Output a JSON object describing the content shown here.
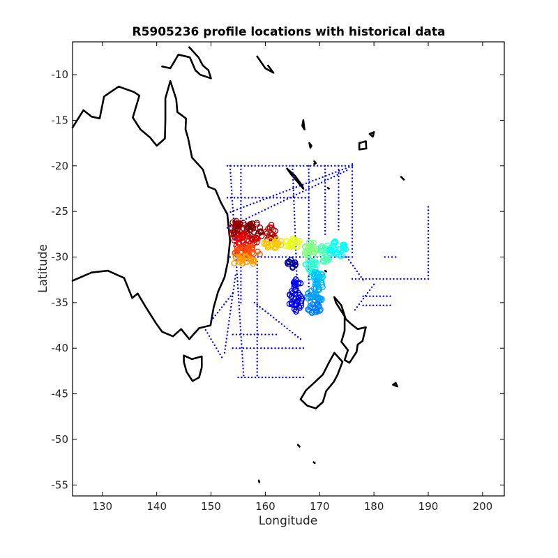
{
  "chart_data": {
    "type": "scatter",
    "title": "R5905236 profile locations with historical data",
    "xlabel": "Longitude",
    "ylabel": "Latitude",
    "xlim": [
      124.5,
      204
    ],
    "ylim": [
      -56.2,
      -6.4
    ],
    "xticks": [
      130,
      140,
      150,
      160,
      170,
      180,
      190,
      200
    ],
    "yticks": [
      -10,
      -15,
      -20,
      -25,
      -30,
      -35,
      -40,
      -45,
      -50,
      -55
    ],
    "grid": false,
    "legend": "none",
    "colors": {
      "coastline": "#000000",
      "historical": "#0000ff",
      "colormap": "jet"
    },
    "series": [
      {
        "marker": "dot",
        "color": "#0000ff",
        "tracks": [
          {
            "x": [
              153.0,
              176.0
            ],
            "y": [
              -20.0,
              -20.0
            ]
          },
          {
            "x": [
              153.0,
              168.0
            ],
            "y": [
              -23.5,
              -23.5
            ]
          },
          {
            "x": [
              153.5,
              176.0
            ],
            "y": [
              -30.0,
              -30.0
            ]
          },
          {
            "x": [
              176.0,
              190.0
            ],
            "y": [
              -32.4,
              -32.4
            ]
          },
          {
            "x": [
              153.0,
              176.0
            ],
            "y": [
              -25.2,
              -20.0
            ]
          },
          {
            "x": [
              153.0,
              175.0
            ],
            "y": [
              -26.8,
              -20.5
            ]
          },
          {
            "x": [
              154.0,
              162.0
            ],
            "y": [
              -38.5,
              -38.5
            ]
          },
          {
            "x": [
              154.0,
              167.0
            ],
            "y": [
              -40.0,
              -40.0
            ]
          },
          {
            "x": [
              155.0,
              167.0
            ],
            "y": [
              -43.2,
              -43.2
            ]
          },
          {
            "x": [
              153.5,
              156.0
            ],
            "y": [
              -20.0,
              -43.0
            ]
          },
          {
            "x": [
              155.5,
              155.5
            ],
            "y": [
              -20.0,
              -35.0
            ]
          },
          {
            "x": [
              158.5,
              158.5
            ],
            "y": [
              -30.5,
              -43.0
            ]
          },
          {
            "x": [
              165.0,
              166.0
            ],
            "y": [
              -20.0,
              -35.0
            ]
          },
          {
            "x": [
              168.0,
              168.0
            ],
            "y": [
              -20.0,
              -34.0
            ]
          },
          {
            "x": [
              171.0,
              171.0
            ],
            "y": [
              -20.0,
              -27.5
            ]
          },
          {
            "x": [
              173.5,
              173.5
            ],
            "y": [
              -20.0,
              -27.0
            ]
          },
          {
            "x": [
              176.0,
              176.0
            ],
            "y": [
              -19.8,
              -29.5
            ]
          },
          {
            "x": [
              190.0,
              190.0
            ],
            "y": [
              -24.5,
              -32.4
            ]
          },
          {
            "x": [
              175.0,
              178.0
            ],
            "y": [
              -30.0,
              -32.5
            ]
          },
          {
            "x": [
              178.0,
              183.0
            ],
            "y": [
              -34.3,
              -34.3
            ]
          },
          {
            "x": [
              178.0,
              183.0
            ],
            "y": [
              -35.3,
              -35.3
            ]
          },
          {
            "x": [
              176.5,
              180.0
            ],
            "y": [
              -35.8,
              -33.0
            ]
          },
          {
            "x": [
              152.5,
              154.5
            ],
            "y": [
              -40.5,
              -32.0
            ]
          },
          {
            "x": [
              149.0,
              152.0
            ],
            "y": [
              -38.0,
              -41.0
            ]
          },
          {
            "x": [
              158.0,
              166.5
            ],
            "y": [
              -35.0,
              -39.0
            ]
          },
          {
            "x": [
              150.0,
              154.0
            ],
            "y": [
              -37.0,
              -34.0
            ]
          },
          {
            "x": [
              182.0,
              184.0
            ],
            "y": [
              -30.0,
              -30.0
            ]
          }
        ]
      },
      {
        "marker": "circle",
        "colormap": "jet",
        "clusters": [
          {
            "cx": 155.0,
            "cy": -27.0,
            "rx": 1.5,
            "ry": 1.1,
            "n": 35,
            "c": 0.98
          },
          {
            "cx": 158.0,
            "cy": -27.2,
            "rx": 1.6,
            "ry": 1.0,
            "n": 35,
            "c": 1.0
          },
          {
            "cx": 161.0,
            "cy": -27.3,
            "rx": 1.0,
            "ry": 1.0,
            "n": 18,
            "c": 0.95
          },
          {
            "cx": 156.5,
            "cy": -28.3,
            "rx": 2.4,
            "ry": 0.8,
            "n": 35,
            "c": 0.9
          },
          {
            "cx": 156.5,
            "cy": -29.5,
            "rx": 2.6,
            "ry": 0.7,
            "n": 35,
            "c": 0.8
          },
          {
            "cx": 156.0,
            "cy": -30.4,
            "rx": 2.2,
            "ry": 0.6,
            "n": 25,
            "c": 0.72
          },
          {
            "cx": 161.5,
            "cy": -28.5,
            "rx": 1.8,
            "ry": 0.6,
            "n": 25,
            "c": 0.68
          },
          {
            "cx": 165.0,
            "cy": -28.5,
            "rx": 1.5,
            "ry": 0.6,
            "n": 22,
            "c": 0.6
          },
          {
            "cx": 168.5,
            "cy": -29.3,
            "rx": 1.5,
            "ry": 1.0,
            "n": 28,
            "c": 0.5
          },
          {
            "cx": 171.0,
            "cy": -29.6,
            "rx": 1.3,
            "ry": 1.0,
            "n": 26,
            "c": 0.45
          },
          {
            "cx": 173.3,
            "cy": -29.2,
            "rx": 1.6,
            "ry": 1.0,
            "n": 30,
            "c": 0.38
          },
          {
            "cx": 168.5,
            "cy": -31.0,
            "rx": 1.2,
            "ry": 0.8,
            "n": 20,
            "c": 0.42
          },
          {
            "cx": 169.5,
            "cy": -32.3,
            "rx": 1.3,
            "ry": 0.8,
            "n": 20,
            "c": 0.32
          },
          {
            "cx": 170.0,
            "cy": -33.0,
            "rx": 1.0,
            "ry": 0.7,
            "n": 15,
            "c": 0.3
          },
          {
            "cx": 169.0,
            "cy": -34.4,
            "rx": 1.5,
            "ry": 1.0,
            "n": 25,
            "c": 0.28
          },
          {
            "cx": 169.0,
            "cy": -35.5,
            "rx": 1.5,
            "ry": 0.7,
            "n": 25,
            "c": 0.25
          },
          {
            "cx": 165.5,
            "cy": -34.8,
            "rx": 1.3,
            "ry": 1.3,
            "n": 35,
            "c": 0.1
          },
          {
            "cx": 165.8,
            "cy": -33.0,
            "rx": 0.8,
            "ry": 0.6,
            "n": 12,
            "c": 0.12
          },
          {
            "cx": 164.8,
            "cy": -30.7,
            "rx": 0.9,
            "ry": 0.5,
            "n": 15,
            "c": 0.03
          }
        ]
      }
    ],
    "coastlines": [
      [
        [
          124.5,
          -32.6
        ],
        [
          128.0,
          -31.7
        ],
        [
          131.0,
          -31.5
        ],
        [
          134.0,
          -32.3
        ],
        [
          135.5,
          -34.5
        ],
        [
          136.5,
          -34.0
        ],
        [
          138.0,
          -35.5
        ],
        [
          139.8,
          -37.2
        ],
        [
          141.0,
          -38.2
        ],
        [
          143.0,
          -38.7
        ],
        [
          144.5,
          -37.9
        ],
        [
          146.0,
          -39.0
        ],
        [
          147.8,
          -37.8
        ],
        [
          149.9,
          -37.5
        ],
        [
          150.5,
          -35.5
        ],
        [
          151.3,
          -33.8
        ],
        [
          152.5,
          -32.2
        ],
        [
          153.1,
          -30.5
        ],
        [
          153.5,
          -28.2
        ],
        [
          153.2,
          -26.5
        ],
        [
          153.0,
          -25.3
        ],
        [
          151.8,
          -24.0
        ],
        [
          150.8,
          -22.6
        ],
        [
          149.5,
          -22.3
        ],
        [
          148.5,
          -20.4
        ],
        [
          146.5,
          -19.1
        ],
        [
          145.8,
          -17.0
        ],
        [
          145.3,
          -16.0
        ],
        [
          145.4,
          -14.8
        ],
        [
          143.8,
          -14.1
        ],
        [
          143.6,
          -12.7
        ],
        [
          142.5,
          -10.7
        ],
        [
          141.6,
          -12.6
        ],
        [
          141.6,
          -15.0
        ],
        [
          141.5,
          -17.0
        ],
        [
          140.0,
          -17.8
        ],
        [
          138.8,
          -16.9
        ],
        [
          137.0,
          -16.0
        ],
        [
          135.6,
          -14.7
        ],
        [
          136.8,
          -12.3
        ],
        [
          135.8,
          -11.9
        ],
        [
          133.0,
          -11.3
        ],
        [
          131.5,
          -11.9
        ],
        [
          130.3,
          -12.4
        ],
        [
          129.5,
          -14.8
        ],
        [
          128.0,
          -14.6
        ],
        [
          126.5,
          -13.9
        ],
        [
          124.5,
          -15.8
        ]
      ],
      [
        [
          145.0,
          -40.8
        ],
        [
          146.5,
          -41.2
        ],
        [
          148.3,
          -40.9
        ],
        [
          148.3,
          -42.1
        ],
        [
          147.8,
          -43.2
        ],
        [
          146.6,
          -43.6
        ],
        [
          145.5,
          -42.6
        ],
        [
          145.0,
          -41.5
        ],
        [
          145.0,
          -40.8
        ]
      ],
      [
        [
          172.7,
          -34.4
        ],
        [
          174.0,
          -35.3
        ],
        [
          174.8,
          -36.8
        ],
        [
          175.9,
          -37.4
        ],
        [
          177.0,
          -37.9
        ],
        [
          178.5,
          -37.7
        ],
        [
          177.9,
          -39.2
        ],
        [
          177.0,
          -39.6
        ],
        [
          176.8,
          -40.4
        ],
        [
          175.5,
          -41.6
        ],
        [
          174.6,
          -41.3
        ],
        [
          175.2,
          -40.2
        ],
        [
          174.0,
          -39.3
        ],
        [
          174.6,
          -38.1
        ],
        [
          174.6,
          -36.5
        ],
        [
          173.0,
          -35.0
        ],
        [
          172.7,
          -34.4
        ]
      ],
      [
        [
          172.7,
          -40.5
        ],
        [
          174.2,
          -41.5
        ],
        [
          173.3,
          -42.9
        ],
        [
          172.6,
          -43.7
        ],
        [
          171.2,
          -44.7
        ],
        [
          170.6,
          -45.9
        ],
        [
          169.3,
          -46.6
        ],
        [
          167.7,
          -46.3
        ],
        [
          166.5,
          -45.6
        ],
        [
          167.5,
          -44.6
        ],
        [
          168.8,
          -43.9
        ],
        [
          170.6,
          -42.9
        ],
        [
          171.6,
          -41.7
        ],
        [
          172.7,
          -40.5
        ]
      ],
      [
        [
          141.0,
          -9.1
        ],
        [
          142.5,
          -9.3
        ],
        [
          144.0,
          -7.8
        ],
        [
          146.1,
          -8.1
        ],
        [
          147.1,
          -9.5
        ],
        [
          148.0,
          -10.0
        ],
        [
          150.0,
          -10.4
        ],
        [
          149.5,
          -9.5
        ],
        [
          148.5,
          -9.0
        ],
        [
          147.7,
          -8.1
        ],
        [
          146.0,
          -7.0
        ]
      ],
      [
        [
          164.0,
          -20.3
        ],
        [
          165.5,
          -21.1
        ],
        [
          166.8,
          -22.2
        ],
        [
          167.0,
          -22.5
        ],
        [
          166.0,
          -21.8
        ],
        [
          164.7,
          -20.9
        ],
        [
          164.0,
          -20.3
        ]
      ],
      [
        [
          177.3,
          -17.5
        ],
        [
          178.5,
          -17.3
        ],
        [
          178.6,
          -18.1
        ],
        [
          177.3,
          -18.2
        ],
        [
          177.3,
          -17.5
        ]
      ],
      [
        [
          158.5,
          -8.0
        ],
        [
          160.0,
          -9.3
        ],
        [
          161.5,
          -9.8
        ],
        [
          160.5,
          -9.0
        ]
      ],
      [
        [
          167.0,
          -15.0
        ],
        [
          167.2,
          -16.0
        ],
        [
          166.8,
          -15.6
        ],
        [
          167.0,
          -15.0
        ]
      ],
      [
        [
          168.1,
          -17.5
        ],
        [
          168.5,
          -17.8
        ],
        [
          168.3,
          -18.0
        ],
        [
          168.1,
          -17.5
        ]
      ],
      [
        [
          169.0,
          -19.5
        ],
        [
          169.3,
          -19.7
        ],
        [
          169.0,
          -19.8
        ]
      ],
      [
        [
          171.5,
          -22.4
        ],
        [
          171.7,
          -22.5
        ]
      ],
      [
        [
          179.2,
          -16.5
        ],
        [
          179.8,
          -16.8
        ],
        [
          180.0,
          -16.3
        ],
        [
          179.2,
          -16.5
        ]
      ],
      [
        [
          185.0,
          -21.2
        ],
        [
          185.5,
          -21.5
        ]
      ],
      [
        [
          184.0,
          -43.8
        ],
        [
          184.3,
          -44.2
        ],
        [
          183.5,
          -44.0
        ],
        [
          184.0,
          -43.8
        ]
      ],
      [
        [
          166.0,
          -50.6
        ],
        [
          166.3,
          -50.8
        ]
      ],
      [
        [
          168.9,
          -52.5
        ],
        [
          169.1,
          -52.6
        ]
      ],
      [
        [
          158.8,
          -54.5
        ],
        [
          158.9,
          -54.7
        ]
      ],
      [
        [
          171.0,
          -31.5
        ],
        [
          171.2,
          -31.6
        ]
      ]
    ]
  }
}
